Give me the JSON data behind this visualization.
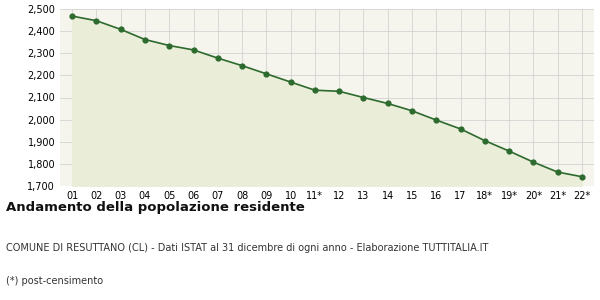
{
  "x_labels": [
    "01",
    "02",
    "03",
    "04",
    "05",
    "06",
    "07",
    "08",
    "09",
    "10",
    "11*",
    "12",
    "13",
    "14",
    "15",
    "16",
    "17",
    "18*",
    "19*",
    "20*",
    "21*",
    "22*"
  ],
  "y_values": [
    2468,
    2447,
    2408,
    2362,
    2335,
    2315,
    2278,
    2244,
    2207,
    2170,
    2133,
    2128,
    2100,
    2073,
    2040,
    1998,
    1958,
    1905,
    1858,
    1808,
    1763,
    1742
  ],
  "line_color": "#2d6a2d",
  "fill_color": "#eaedd8",
  "marker_color": "#2d6a2d",
  "plot_bg_color": "#f5f5ee",
  "fig_bg_color": "#ffffff",
  "grid_color": "#cccccc",
  "ylim": [
    1700,
    2500
  ],
  "yticks": [
    1700,
    1800,
    1900,
    2000,
    2100,
    2200,
    2300,
    2400,
    2500
  ],
  "title": "Andamento della popolazione residente",
  "subtitle": "COMUNE DI RESUTTANO (CL) - Dati ISTAT al 31 dicembre di ogni anno - Elaborazione TUTTITALIA.IT",
  "footnote": "(*) post-censimento",
  "title_fontsize": 9.5,
  "subtitle_fontsize": 7,
  "footnote_fontsize": 7,
  "tick_fontsize": 7
}
